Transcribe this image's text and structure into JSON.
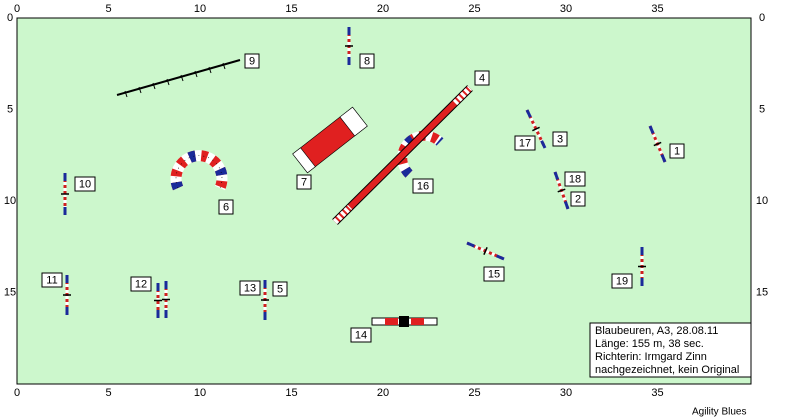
{
  "axis": {
    "x_labels": [
      "0",
      "5",
      "10",
      "15",
      "20",
      "25",
      "30",
      "35"
    ],
    "y_labels": [
      "0",
      "5",
      "10",
      "15"
    ]
  },
  "obstacles": [
    "1",
    "2",
    "3",
    "4",
    "5",
    "6",
    "7",
    "8",
    "9",
    "10",
    "11",
    "12",
    "13",
    "14",
    "15",
    "16",
    "17",
    "18",
    "19"
  ],
  "info": {
    "lines": [
      "Blaubeuren, A3, 28.08.11",
      "Länge: 155 m, 38 sec.",
      "Richterin: Irmgard Zinn",
      "nachgezeichnet, kein Original"
    ]
  },
  "footer": "Agility Blues"
}
